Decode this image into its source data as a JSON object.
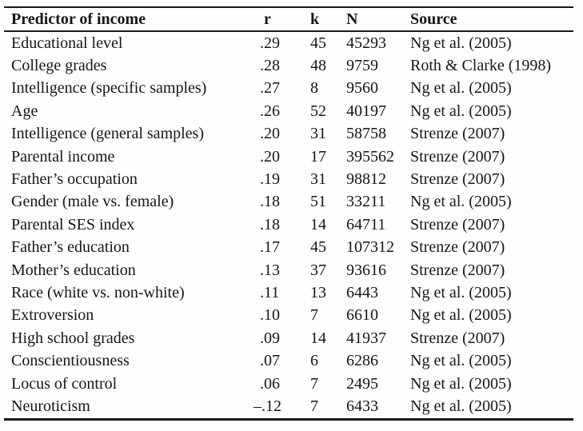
{
  "table": {
    "columns": [
      {
        "key": "predictor",
        "label": "Predictor of income"
      },
      {
        "key": "r",
        "label": "r"
      },
      {
        "key": "k",
        "label": "k"
      },
      {
        "key": "n",
        "label": "N"
      },
      {
        "key": "source",
        "label": "Source"
      }
    ],
    "rows": [
      [
        "Educational level",
        ".29",
        "45",
        "45293",
        "Ng et al. (2005)"
      ],
      [
        "College grades",
        ".28",
        "48",
        "9759",
        "Roth & Clarke (1998)"
      ],
      [
        "Intelligence (specific samples)",
        ".27",
        "8",
        "9560",
        "Ng et al. (2005)"
      ],
      [
        "Age",
        ".26",
        "52",
        "40197",
        "Ng et al. (2005)"
      ],
      [
        "Intelligence (general samples)",
        ".20",
        "31",
        "58758",
        "Strenze (2007)"
      ],
      [
        "Parental income",
        ".20",
        "17",
        "395562",
        "Strenze (2007)"
      ],
      [
        "Father’s occupation",
        ".19",
        "31",
        "98812",
        "Strenze (2007)"
      ],
      [
        "Gender (male vs. female)",
        ".18",
        "51",
        "33211",
        "Ng et al. (2005)"
      ],
      [
        "Parental SES index",
        ".18",
        "14",
        "64711",
        "Strenze (2007)"
      ],
      [
        "Father’s education",
        ".17",
        "45",
        "107312",
        "Strenze (2007)"
      ],
      [
        "Mother’s education",
        ".13",
        "37",
        "93616",
        "Strenze (2007)"
      ],
      [
        "Race (white vs. non-white)",
        ".11",
        "13",
        "6443",
        "Ng et al. (2005)"
      ],
      [
        "Extroversion",
        ".10",
        "7",
        "6610",
        "Ng et al. (2005)"
      ],
      [
        "High school grades",
        ".09",
        "14",
        "41937",
        "Strenze (2007)"
      ],
      [
        "Conscientiousness",
        ".07",
        "6",
        "6286",
        "Ng et al. (2005)"
      ],
      [
        "Locus of control",
        ".06",
        "7",
        "2495",
        "Ng et al. (2005)"
      ],
      [
        "Neuroticism",
        "–.12",
        "7",
        "6433",
        "Ng et al. (2005)"
      ]
    ]
  }
}
